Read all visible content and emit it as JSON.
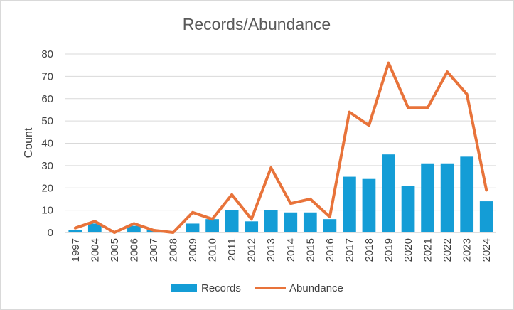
{
  "chart_data": {
    "type": "bar",
    "title": "Records/Abundance",
    "xlabel": "",
    "ylabel": "Count",
    "ylim": [
      0,
      80
    ],
    "yticks": [
      0,
      10,
      20,
      30,
      40,
      50,
      60,
      70,
      80
    ],
    "grid": true,
    "legend_position": "bottom",
    "categories": [
      "1997",
      "2004",
      "2005",
      "2006",
      "2007",
      "2008",
      "2009",
      "2010",
      "2011",
      "2012",
      "2013",
      "2014",
      "2015",
      "2016",
      "2017",
      "2018",
      "2019",
      "2020",
      "2021",
      "2022",
      "2023",
      "2024"
    ],
    "series": [
      {
        "name": "Records",
        "type": "bar",
        "color": "#149dd6",
        "values": [
          1,
          4,
          0,
          3,
          1,
          0,
          4,
          6,
          10,
          5,
          10,
          9,
          9,
          6,
          25,
          24,
          35,
          21,
          31,
          31,
          34,
          14
        ]
      },
      {
        "name": "Abundance",
        "type": "line",
        "color": "#e8733a",
        "values": [
          2,
          5,
          0,
          4,
          1,
          0,
          9,
          6,
          17,
          6,
          29,
          13,
          15,
          7,
          54,
          48,
          76,
          56,
          56,
          72,
          62,
          19
        ]
      }
    ]
  }
}
